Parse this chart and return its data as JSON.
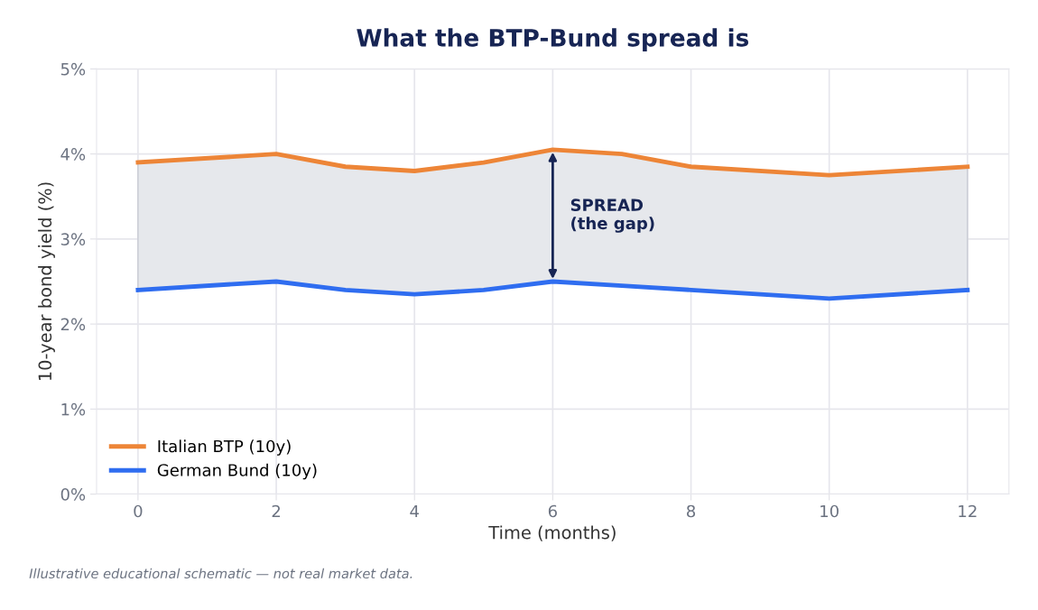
{
  "chart_data": {
    "type": "line",
    "title": "What the BTP-Bund spread is",
    "xlabel": "Time (months)",
    "ylabel": "10-year bond yield (%)",
    "x": [
      0,
      2,
      3,
      4,
      5,
      6,
      7,
      8,
      10,
      12
    ],
    "series": [
      {
        "name": "Italian BTP (10y)",
        "color": "#ed8537",
        "values": [
          3.9,
          4.0,
          3.85,
          3.8,
          3.9,
          4.05,
          4.0,
          3.85,
          3.75,
          3.85
        ],
        "lower": [
          2.4,
          2.5,
          2.4,
          2.35,
          2.4,
          2.5,
          2.45,
          2.4,
          2.3,
          2.4
        ],
        "upper": [
          3.9,
          4.0,
          3.85,
          3.8,
          3.9,
          4.05,
          4.0,
          3.85,
          3.75,
          3.85
        ]
      },
      {
        "name": "German Bund (10y)",
        "color": "#2f6df0",
        "values": [
          2.4,
          2.5,
          2.4,
          2.35,
          2.4,
          2.5,
          2.45,
          2.4,
          2.3,
          2.4
        ]
      }
    ],
    "xlim": [
      -0.6,
      12.6
    ],
    "xticks": [
      0,
      2,
      4,
      6,
      8,
      10,
      12
    ],
    "ylim": [
      0,
      5
    ],
    "yticks": [
      {
        "value": 0,
        "label": "0%"
      },
      {
        "value": 1,
        "label": "1%"
      },
      {
        "value": 2,
        "label": "2%"
      },
      {
        "value": 3,
        "label": "3%"
      },
      {
        "value": 4,
        "label": "4%"
      },
      {
        "value": 5,
        "label": "5%"
      }
    ],
    "grid": true,
    "legend": "bottom left",
    "line_style": "solid",
    "marker": "none",
    "annotations": [
      "SPREAD\n(the gap)",
      "Illustrative educational schematic — not real market data."
    ]
  }
}
